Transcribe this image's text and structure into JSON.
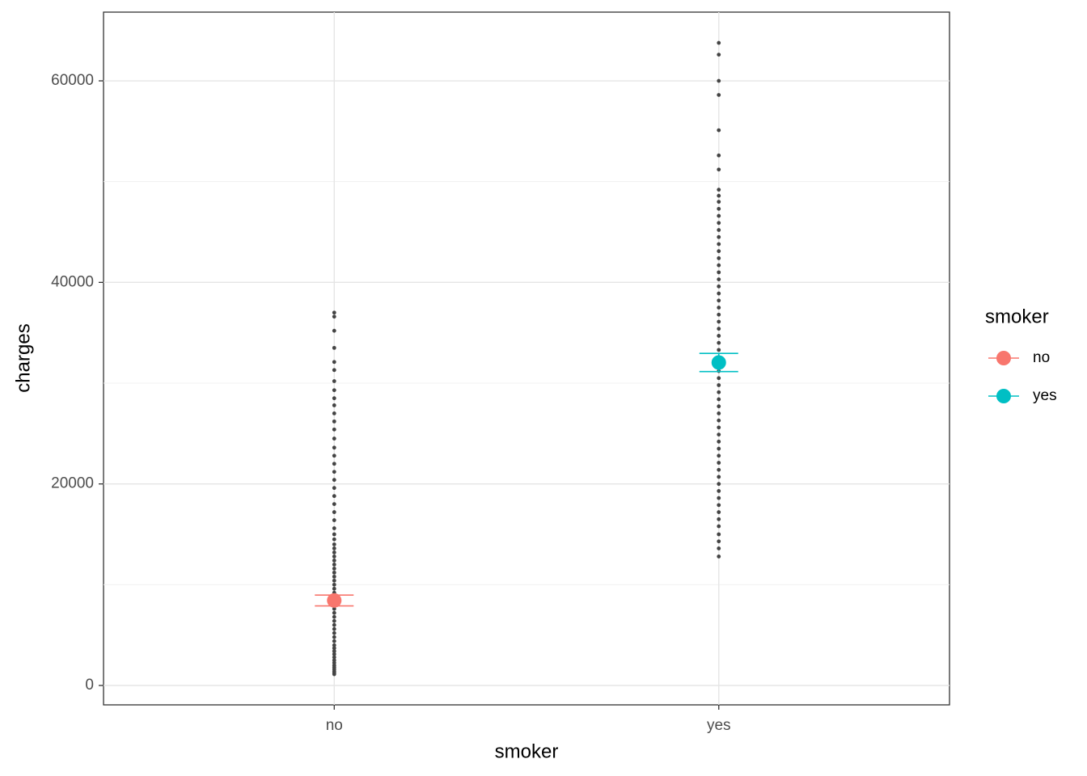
{
  "chart_data": {
    "type": "strip",
    "x_label": "smoker",
    "y_label": "charges",
    "categories": [
      "no",
      "yes"
    ],
    "ylim": [
      -1925,
      66820
    ],
    "yticks": [
      0,
      20000,
      40000,
      60000
    ],
    "minor_yticks": [
      10000,
      30000,
      50000
    ],
    "grid": true,
    "legend_title": "smoker",
    "legend_position": "right",
    "points": {
      "color": "#444444",
      "values": [
        [
          1120,
          1250,
          1400,
          1600,
          1800,
          2000,
          2250,
          2500,
          2800,
          3100,
          3400,
          3700,
          4000,
          4400,
          4800,
          5200,
          5600,
          6000,
          6400,
          6800,
          7200,
          7600,
          8000,
          8400,
          8800,
          9200,
          9600,
          10000,
          10400,
          10800,
          11200,
          11600,
          12000,
          12400,
          12800,
          13200,
          13600,
          14000,
          14500,
          15000,
          15600,
          16400,
          17200,
          18000,
          18800,
          19600,
          20400,
          21200,
          22000,
          22800,
          23600,
          24500,
          25400,
          26200,
          27000,
          27800,
          28500,
          29300,
          30200,
          31300,
          32100,
          33500,
          35200,
          36600,
          37000
        ],
        [
          12800,
          13600,
          14300,
          15000,
          15800,
          16500,
          17200,
          17900,
          18600,
          19300,
          20000,
          20700,
          21400,
          22100,
          22800,
          23500,
          24200,
          24900,
          25600,
          26300,
          27000,
          27700,
          28400,
          29100,
          29800,
          30500,
          31200,
          31900,
          32600,
          33300,
          34000,
          34700,
          35400,
          36100,
          36800,
          37500,
          38200,
          38900,
          39600,
          40300,
          41000,
          41700,
          42400,
          43100,
          43800,
          44500,
          45200,
          45900,
          46600,
          47300,
          48000,
          48600,
          49200,
          51200,
          52600,
          55100,
          58600,
          60000,
          62600,
          63770
        ]
      ]
    },
    "summary": {
      "colors": [
        "#F8766D",
        "#00BFC4"
      ],
      "mean": [
        8434,
        32050
      ],
      "lower": [
        7900,
        31150
      ],
      "upper": [
        8970,
        32950
      ]
    }
  }
}
